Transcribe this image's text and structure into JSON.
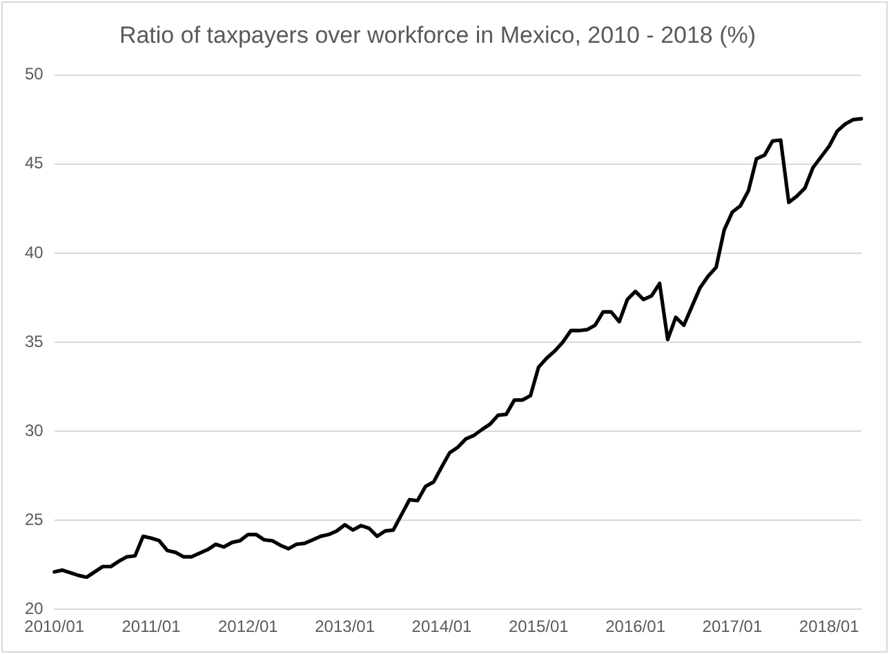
{
  "chart_data": {
    "type": "line",
    "title": "Ratio of taxpayers over workforce in Mexico, 2010 - 2018 (%)",
    "categories": [
      "2010/01",
      null,
      null,
      null,
      null,
      null,
      null,
      null,
      null,
      null,
      null,
      null,
      "2011/01",
      null,
      null,
      null,
      null,
      null,
      null,
      null,
      null,
      null,
      null,
      null,
      "2012/01",
      null,
      null,
      null,
      null,
      null,
      null,
      null,
      null,
      null,
      null,
      null,
      "2013/01",
      null,
      null,
      null,
      null,
      null,
      null,
      null,
      null,
      null,
      null,
      null,
      "2014/01",
      null,
      null,
      null,
      null,
      null,
      null,
      null,
      null,
      null,
      null,
      null,
      "2015/01",
      null,
      null,
      null,
      null,
      null,
      null,
      null,
      null,
      null,
      null,
      null,
      "2016/01",
      null,
      null,
      null,
      null,
      null,
      null,
      null,
      null,
      null,
      null,
      null,
      "2017/01",
      null,
      null,
      null,
      null,
      null,
      null,
      null,
      null,
      null,
      null,
      null,
      "2018/01",
      null,
      null,
      null,
      null
    ],
    "series": [
      {
        "color": "#000000",
        "values": [
          22.1,
          22.2,
          22.05,
          21.9,
          21.8,
          22.1,
          22.4,
          22.4,
          22.7,
          22.95,
          23.0,
          24.1,
          24.0,
          23.85,
          23.3,
          23.2,
          22.95,
          22.95,
          23.15,
          23.35,
          23.65,
          23.5,
          23.75,
          23.85,
          24.2,
          24.2,
          23.9,
          23.85,
          23.6,
          23.4,
          23.65,
          23.7,
          23.9,
          24.1,
          24.2,
          24.4,
          24.75,
          24.45,
          24.7,
          24.55,
          24.1,
          24.4,
          24.45,
          25.3,
          26.15,
          26.1,
          26.9,
          27.15,
          28.0,
          28.8,
          29.1,
          29.57,
          29.77,
          30.1,
          30.4,
          30.9,
          30.95,
          31.75,
          31.75,
          32.0,
          33.6,
          34.1,
          34.5,
          35.0,
          35.65,
          35.65,
          35.7,
          35.95,
          36.7,
          36.7,
          36.15,
          37.4,
          37.85,
          37.4,
          37.6,
          38.3,
          35.15,
          36.4,
          35.95,
          37.0,
          38.05,
          38.7,
          39.2,
          41.3,
          42.3,
          42.65,
          43.5,
          45.3,
          45.5,
          46.3,
          46.35,
          42.85,
          43.2,
          43.65,
          44.8,
          45.4,
          46.0,
          46.85,
          47.25,
          47.5,
          47.55
        ]
      }
    ],
    "ylim": [
      20,
      50
    ],
    "yticks": [
      20,
      25,
      30,
      35,
      40,
      45,
      50
    ],
    "grid": "y",
    "marker": "none",
    "line_style": "solid"
  }
}
